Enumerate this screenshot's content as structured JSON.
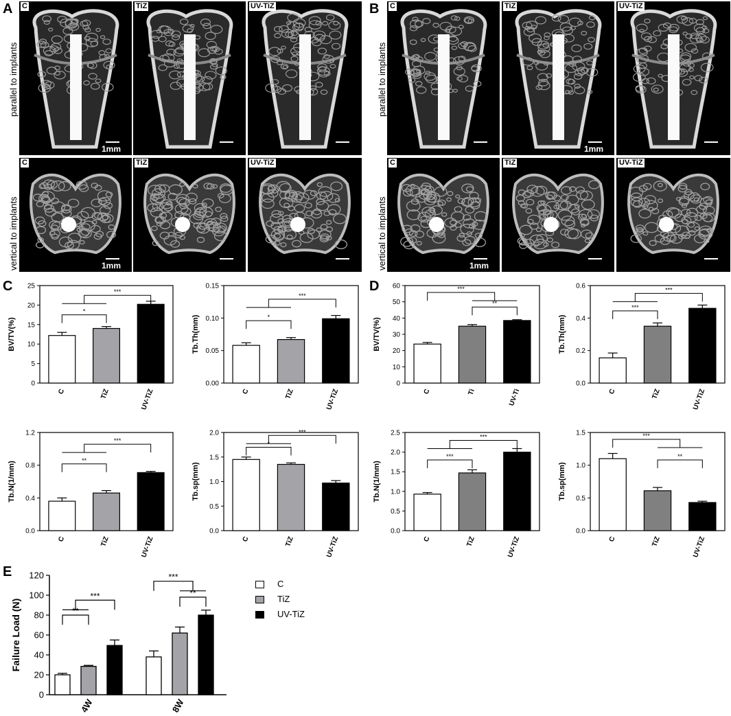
{
  "panels": {
    "A": "A",
    "B": "B",
    "C": "C",
    "D": "D",
    "E": "E"
  },
  "images": {
    "row_labels": [
      "parallel to implants",
      "vertical to implants"
    ],
    "groups": [
      "C",
      "TiZ",
      "UV-TiZ"
    ],
    "scale_label": "1mm"
  },
  "colors": {
    "C": "#ffffff",
    "TiZ": "#a3a3a8",
    "TiZ_dark": "#808080",
    "UV-TiZ": "#000000"
  },
  "legend": {
    "items": [
      "C",
      "TiZ",
      "UV-TiZ"
    ]
  },
  "chart_data": [
    {
      "id": "C1",
      "panel": "C",
      "type": "bar",
      "categories": [
        "C",
        "TiZ",
        "UV-TiZ"
      ],
      "values": [
        12.2,
        14,
        20.2
      ],
      "errors": [
        0.8,
        0.5,
        0.8
      ],
      "ylabel": "BV/TV(%)",
      "ylim": [
        0,
        25
      ],
      "yticks": [
        "0",
        "5",
        "10",
        "15",
        "20",
        "25"
      ],
      "significance": [
        "*",
        "***"
      ]
    },
    {
      "id": "C2",
      "panel": "C",
      "type": "bar",
      "categories": [
        "C",
        "TiZ",
        "UV-TiZ"
      ],
      "values": [
        0.058,
        0.067,
        0.099
      ],
      "errors": [
        0.004,
        0.003,
        0.005
      ],
      "ylabel": "Tb.Th(mm)",
      "ylim": [
        0,
        0.15
      ],
      "yticks": [
        "0.00",
        "0.05",
        "0.10",
        "0.15"
      ],
      "significance": [
        "*",
        "***"
      ]
    },
    {
      "id": "C3",
      "panel": "C",
      "type": "bar",
      "categories": [
        "C",
        "TiZ",
        "UV-TiZ"
      ],
      "values": [
        0.36,
        0.46,
        0.71
      ],
      "errors": [
        0.04,
        0.03,
        0.015
      ],
      "ylabel": "Tb.N(1/mm)",
      "ylim": [
        0,
        1.2
      ],
      "yticks": [
        "0.0",
        "0.4",
        "0.8",
        "1.2"
      ],
      "significance": [
        "**",
        "***"
      ]
    },
    {
      "id": "C4",
      "panel": "C",
      "type": "bar",
      "categories": [
        "C",
        "TiZ",
        "UV-TiZ"
      ],
      "values": [
        1.45,
        1.35,
        0.97
      ],
      "errors": [
        0.05,
        0.03,
        0.05
      ],
      "ylabel": "Tb.sp(mm)",
      "ylim": [
        0,
        2.0
      ],
      "yticks": [
        "0.0",
        "0.5",
        "1.0",
        "1.5",
        "2.0"
      ],
      "significance": [
        "*",
        "***"
      ]
    },
    {
      "id": "D1",
      "panel": "D",
      "type": "bar",
      "categories": [
        "C",
        "Ti",
        "UV-Ti"
      ],
      "values": [
        24,
        35,
        38.5
      ],
      "errors": [
        1,
        1,
        0.5
      ],
      "ylabel": "BV/TV(%)",
      "ylim": [
        0,
        60
      ],
      "yticks": [
        "0",
        "10",
        "20",
        "30",
        "40",
        "50",
        "60"
      ],
      "significance": [
        "***",
        "**"
      ]
    },
    {
      "id": "D2",
      "panel": "D",
      "type": "bar",
      "categories": [
        "C",
        "TiZ",
        "UV-TiZ"
      ],
      "values": [
        0.155,
        0.35,
        0.46
      ],
      "errors": [
        0.03,
        0.02,
        0.02
      ],
      "ylabel": "Tb.Th(mm)",
      "ylim": [
        0,
        0.6
      ],
      "yticks": [
        "0.0",
        "0.2",
        "0.4",
        "0.6"
      ],
      "significance": [
        "***",
        "***"
      ]
    },
    {
      "id": "D3",
      "panel": "D",
      "type": "bar",
      "categories": [
        "C",
        "TiZ",
        "UV-TiZ"
      ],
      "values": [
        0.93,
        1.47,
        2.0
      ],
      "errors": [
        0.04,
        0.08,
        0.09
      ],
      "ylabel": "Tb.N(1/mm)",
      "ylim": [
        0,
        2.5
      ],
      "yticks": [
        "0.0",
        "0.5",
        "1.0",
        "1.5",
        "2.0",
        "2.5"
      ],
      "significance": [
        "***",
        "***"
      ]
    },
    {
      "id": "D4",
      "panel": "D",
      "type": "bar",
      "categories": [
        "C",
        "TiZ",
        "UV-TiZ"
      ],
      "values": [
        1.1,
        0.61,
        0.43
      ],
      "errors": [
        0.08,
        0.05,
        0.02
      ],
      "ylabel": "Tb.sp(mm)",
      "ylim": [
        0,
        1.5
      ],
      "yticks": [
        "0.0",
        "0.5",
        "1.0",
        "1.5"
      ],
      "significance": [
        "***",
        "**"
      ]
    },
    {
      "id": "E",
      "panel": "E",
      "type": "bar",
      "categories": [
        "4W",
        "8W"
      ],
      "series": [
        {
          "name": "C",
          "values": [
            20,
            38
          ],
          "errors": [
            1.5,
            6
          ]
        },
        {
          "name": "TiZ",
          "values": [
            28.5,
            62
          ],
          "errors": [
            1,
            6
          ]
        },
        {
          "name": "UV-TiZ",
          "values": [
            49.5,
            80
          ],
          "errors": [
            5.5,
            5
          ]
        }
      ],
      "ylabel": "Failure Load (N)",
      "ylim": [
        0,
        120
      ],
      "yticks": [
        "0",
        "20",
        "40",
        "60",
        "80",
        "100",
        "120"
      ],
      "significance": [
        "**",
        "***",
        "***",
        "**"
      ]
    }
  ]
}
